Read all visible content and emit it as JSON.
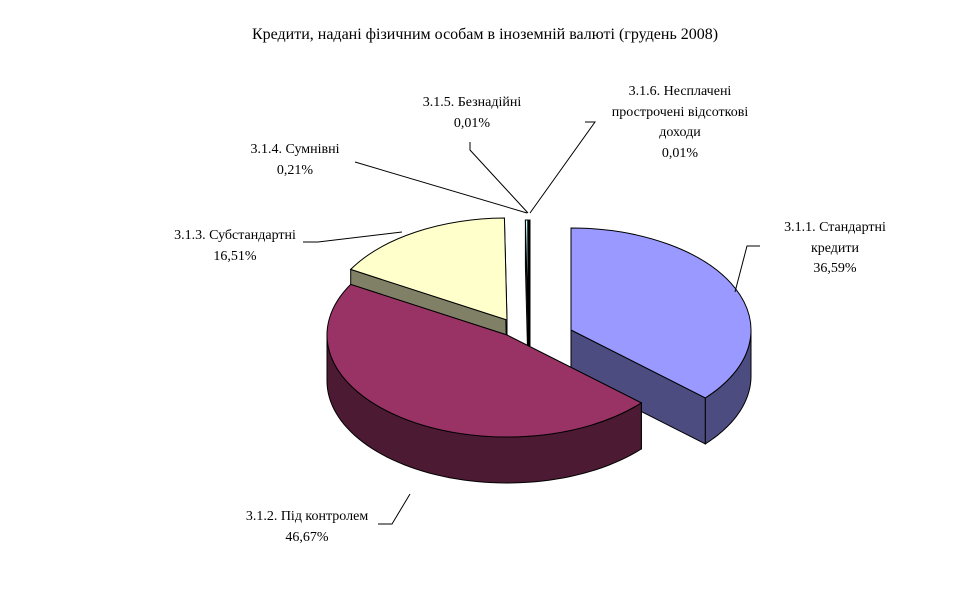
{
  "chart_data": {
    "type": "pie",
    "style": "3d-exploded",
    "title": "Кредити, надані фізичним особам  в іноземній валюті (грудень 2008)",
    "slices": [
      {
        "name": "3.1.1. Стандартні кредити",
        "lines": [
          "3.1.1. Стандартні",
          "кредити"
        ],
        "value": 36.59,
        "label": "36,59%",
        "color": "#9999FF",
        "side": "#4C4C80"
      },
      {
        "name": "3.1.2. Під контролем",
        "lines": [
          "3.1.2. Під контролем"
        ],
        "value": 46.67,
        "label": "46,67%",
        "color": "#993366",
        "side": "#4D1A33"
      },
      {
        "name": "3.1.3. Субстандартні",
        "lines": [
          "3.1.3. Субстандартні"
        ],
        "value": 16.51,
        "label": "16,51%",
        "color": "#FFFFCC",
        "side": "#808066"
      },
      {
        "name": "3.1.4. Сумнівні",
        "lines": [
          "3.1.4. Сумнівні"
        ],
        "value": 0.21,
        "label": "0,21%",
        "color": "#CCFFFF",
        "side": "#668080"
      },
      {
        "name": "3.1.5. Безнадійні",
        "lines": [
          "3.1.5. Безнадійні"
        ],
        "value": 0.01,
        "label": "0,01%",
        "color": "#660066",
        "side": "#330033"
      },
      {
        "name": "3.1.6. Несплачені прострочені відсоткові доходи",
        "lines": [
          "3.1.6. Несплачені",
          "прострочені відсоткові",
          "доходи"
        ],
        "value": 0.01,
        "label": "0,01%",
        "color": "#FF8080",
        "side": "#804040"
      }
    ],
    "legend": "none",
    "start_angle": "top, clockwise"
  }
}
